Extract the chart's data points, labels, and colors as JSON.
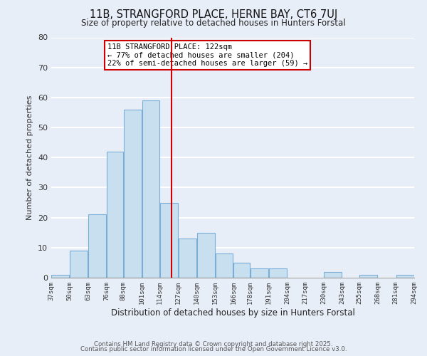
{
  "title": "11B, STRANGFORD PLACE, HERNE BAY, CT6 7UJ",
  "subtitle": "Size of property relative to detached houses in Hunters Forstal",
  "xlabel": "Distribution of detached houses by size in Hunters Forstal",
  "ylabel": "Number of detached properties",
  "bin_edges": [
    37,
    50,
    63,
    76,
    88,
    101,
    114,
    127,
    140,
    153,
    166,
    178,
    191,
    204,
    217,
    230,
    243,
    255,
    268,
    281,
    294
  ],
  "bar_heights": [
    1,
    9,
    21,
    42,
    56,
    59,
    25,
    13,
    15,
    8,
    5,
    3,
    3,
    0,
    0,
    2,
    0,
    1,
    0,
    1
  ],
  "bar_color": "#c8dff0",
  "bar_edge_color": "#7aaed6",
  "vline_x": 122,
  "vline_color": "#cc0000",
  "annotation_title": "11B STRANGFORD PLACE: 122sqm",
  "annotation_line1": "← 77% of detached houses are smaller (204)",
  "annotation_line2": "22% of semi-detached houses are larger (59) →",
  "annotation_box_color": "white",
  "annotation_box_edge": "#cc0000",
  "ylim": [
    0,
    80
  ],
  "xlim": [
    37,
    294
  ],
  "tick_labels": [
    "37sqm",
    "50sqm",
    "63sqm",
    "76sqm",
    "88sqm",
    "101sqm",
    "114sqm",
    "127sqm",
    "140sqm",
    "153sqm",
    "166sqm",
    "178sqm",
    "191sqm",
    "204sqm",
    "217sqm",
    "230sqm",
    "243sqm",
    "255sqm",
    "268sqm",
    "281sqm",
    "294sqm"
  ],
  "footer1": "Contains HM Land Registry data © Crown copyright and database right 2025.",
  "footer2": "Contains public sector information licensed under the Open Government Licence v3.0.",
  "background_color": "#e8eef8",
  "grid_color": "white"
}
